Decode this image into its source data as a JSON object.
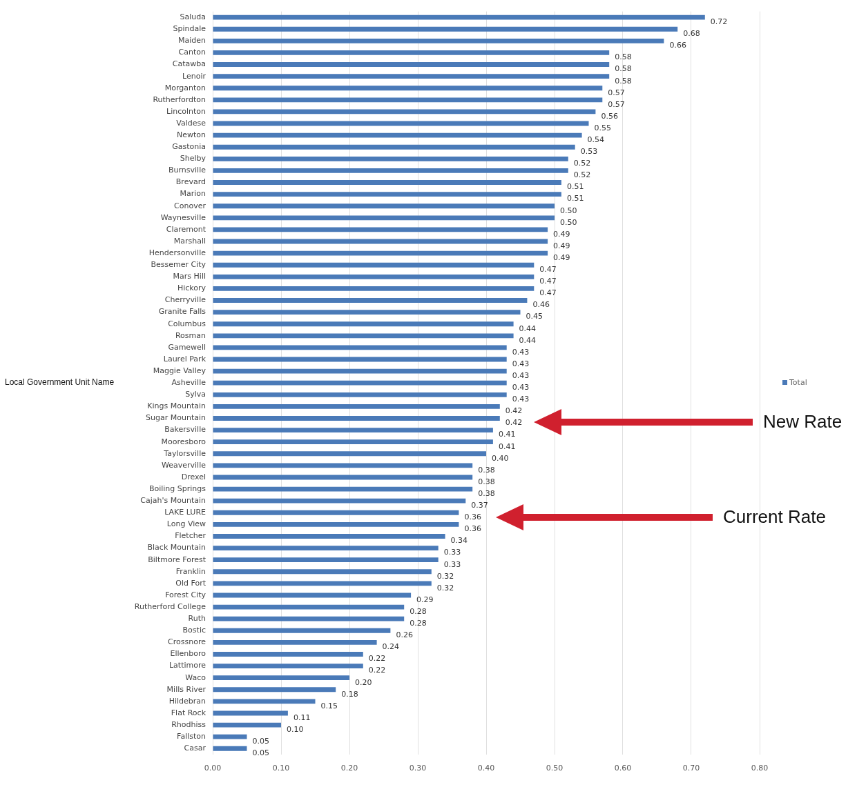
{
  "chart_data": {
    "type": "bar",
    "orientation": "horizontal",
    "ylabel": "Local Government Unit Name",
    "categories": [
      "Saluda",
      "Spindale",
      "Maiden",
      "Canton",
      "Catawba",
      "Lenoir",
      "Morganton",
      "Rutherfordton",
      "Lincolnton",
      "Valdese",
      "Newton",
      "Gastonia",
      "Shelby",
      "Burnsville",
      "Brevard",
      "Marion",
      "Conover",
      "Waynesville",
      "Claremont",
      "Marshall",
      "Hendersonville",
      "Bessemer City",
      "Mars Hill",
      "Hickory",
      "Cherryville",
      "Granite Falls",
      "Columbus",
      "Rosman",
      "Gamewell",
      "Laurel Park",
      "Maggie Valley",
      "Asheville",
      "Sylva",
      "Kings Mountain",
      "Sugar Mountain",
      "Bakersville",
      "Mooresboro",
      "Taylorsville",
      "Weaverville",
      "Drexel",
      "Boiling Springs",
      "Cajah's Mountain",
      "LAKE LURE",
      "Long View",
      "Fletcher",
      "Black Mountain",
      "Biltmore Forest",
      "Franklin",
      "Old Fort",
      "Forest City",
      "Rutherford College",
      "Ruth",
      "Bostic",
      "Crossnore",
      "Ellenboro",
      "Lattimore",
      "Waco",
      "Mills River",
      "Hildebran",
      "Flat Rock",
      "Rhodhiss",
      "Fallston",
      "Casar"
    ],
    "series": [
      {
        "name": "Total",
        "color": "#4a7ab8",
        "values": [
          0.72,
          0.68,
          0.66,
          0.58,
          0.58,
          0.58,
          0.57,
          0.57,
          0.56,
          0.55,
          0.54,
          0.53,
          0.52,
          0.52,
          0.51,
          0.51,
          0.5,
          0.5,
          0.49,
          0.49,
          0.49,
          0.47,
          0.47,
          0.47,
          0.46,
          0.45,
          0.44,
          0.44,
          0.43,
          0.43,
          0.43,
          0.43,
          0.43,
          0.42,
          0.42,
          0.41,
          0.41,
          0.4,
          0.38,
          0.38,
          0.38,
          0.37,
          0.36,
          0.36,
          0.34,
          0.33,
          0.33,
          0.32,
          0.32,
          0.29,
          0.28,
          0.28,
          0.26,
          0.24,
          0.22,
          0.22,
          0.2,
          0.18,
          0.15,
          0.11,
          0.1,
          0.05,
          0.05
        ],
        "value_labels": [
          "0.72",
          "0.68",
          "0.66",
          "0.58",
          "0.58",
          "0.58",
          "0.57",
          "0.57",
          "0.56",
          "0.55",
          "0.54",
          "0.53",
          "0.52",
          "0.52",
          "0.51",
          "0.51",
          "0.50",
          "0.50",
          "0.49",
          "0.49",
          "0.49",
          "0.47",
          "0.47",
          "0.47",
          "0.46",
          "0.45",
          "0.44",
          "0.44",
          "0.43",
          "0.43",
          "0.43",
          "0.43",
          "0.43",
          "0.42",
          "0.42",
          "0.41",
          "0.41",
          "0.40",
          "0.38",
          "0.38",
          "0.38",
          "0.37",
          "0.36",
          "0.36",
          "0.34",
          "0.33",
          "0.33",
          "0.32",
          "0.32",
          "0.29",
          "0.28",
          "0.28",
          "0.26",
          "0.24",
          "0.22",
          "0.22",
          "0.20",
          "0.18",
          "0.15",
          "0.11",
          "0.10",
          "0.05",
          "0.05"
        ]
      }
    ],
    "xlim": [
      0,
      0.8
    ],
    "xticks": [
      {
        "value": 0,
        "label": "0.00"
      },
      {
        "value": 0.1,
        "label": "0.10"
      },
      {
        "value": 0.2,
        "label": "0.20"
      },
      {
        "value": 0.3,
        "label": "0.30"
      },
      {
        "value": 0.4,
        "label": "0.40"
      },
      {
        "value": 0.5,
        "label": "0.50"
      },
      {
        "value": 0.6,
        "label": "0.60"
      },
      {
        "value": 0.7,
        "label": "0.70"
      },
      {
        "value": 0.8,
        "label": "0.80"
      }
    ],
    "grid": "x",
    "legend": "right",
    "annotations": [
      "New Rate",
      "Current Rate"
    ]
  }
}
